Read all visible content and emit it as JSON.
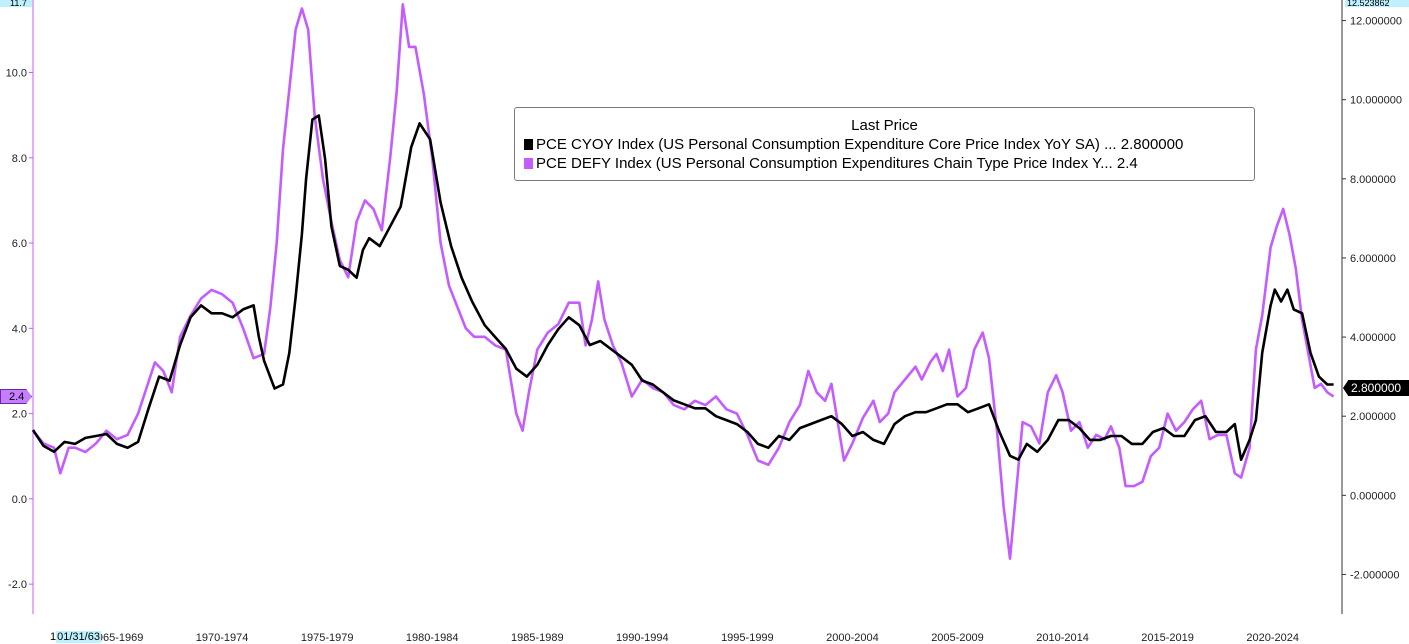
{
  "chart_data": {
    "type": "line",
    "legend_title": "Last Price",
    "legend_position": "top-center",
    "start_date_label": "01/31/63",
    "start_date_prefix": "1",
    "left_axis": {
      "ticks": [
        -2.0,
        0.0,
        2.0,
        4.0,
        6.0,
        8.0,
        10.0
      ],
      "tick_labels": [
        "-2.0",
        "0.0",
        "2.0",
        "4.0",
        "6.0",
        "8.0",
        "10.0"
      ],
      "range": [
        -2.7,
        11.7
      ],
      "top_label": "11.7"
    },
    "right_axis": {
      "ticks": [
        -2.0,
        0.0,
        2.0,
        4.0,
        6.0,
        8.0,
        10.0,
        12.0
      ],
      "tick_labels": [
        "-2.000000",
        "0.000000",
        "2.000000",
        "4.000000",
        "6.000000",
        "8.000000",
        "10.000000",
        "12.000000"
      ],
      "range": [
        -3.0,
        12.52
      ],
      "top_label": "12.523862"
    },
    "x_axis": {
      "range": [
        1963.0,
        2025.3
      ],
      "period_labels": [
        "1965-1969",
        "1970-1974",
        "1975-1979",
        "1980-1984",
        "1985-1989",
        "1990-1994",
        "1995-1999",
        "2000-2004",
        "2005-2009",
        "2010-2014",
        "2015-2019",
        "2020-2024"
      ],
      "period_centers": [
        1967,
        1972,
        1977,
        1982,
        1987,
        1992,
        1997,
        2002,
        2007,
        2012,
        2017,
        2022
      ],
      "grid": false
    },
    "series": [
      {
        "name": "PCE CYOY Index (US Personal Consumption Expenditure Core Price Index YoY SA) ... 2.800000",
        "color": "#000000",
        "axis": "right",
        "last_value_label": "2.800000",
        "points": [
          [
            1963.0,
            1.65
          ],
          [
            1963.5,
            1.25
          ],
          [
            1964.0,
            1.1
          ],
          [
            1964.5,
            1.35
          ],
          [
            1965.0,
            1.3
          ],
          [
            1965.5,
            1.45
          ],
          [
            1966.0,
            1.5
          ],
          [
            1966.5,
            1.55
          ],
          [
            1967.0,
            1.3
          ],
          [
            1967.5,
            1.2
          ],
          [
            1968.0,
            1.35
          ],
          [
            1968.5,
            2.2
          ],
          [
            1969.0,
            3.0
          ],
          [
            1969.5,
            2.9
          ],
          [
            1970.0,
            3.8
          ],
          [
            1970.5,
            4.5
          ],
          [
            1971.0,
            4.8
          ],
          [
            1971.5,
            4.6
          ],
          [
            1972.0,
            4.6
          ],
          [
            1972.5,
            4.5
          ],
          [
            1973.0,
            4.7
          ],
          [
            1973.5,
            4.8
          ],
          [
            1973.75,
            4.0
          ],
          [
            1974.0,
            3.4
          ],
          [
            1974.5,
            2.7
          ],
          [
            1974.9,
            2.8
          ],
          [
            1975.2,
            3.6
          ],
          [
            1975.5,
            5.0
          ],
          [
            1975.8,
            6.6
          ],
          [
            1976.0,
            8.0
          ],
          [
            1976.3,
            9.5
          ],
          [
            1976.6,
            9.6
          ],
          [
            1976.9,
            8.5
          ],
          [
            1977.2,
            6.8
          ],
          [
            1977.6,
            5.8
          ],
          [
            1978.0,
            5.7
          ],
          [
            1978.4,
            5.5
          ],
          [
            1978.7,
            6.2
          ],
          [
            1979.0,
            6.5
          ],
          [
            1979.5,
            6.3
          ],
          [
            1980.0,
            6.8
          ],
          [
            1980.5,
            7.3
          ],
          [
            1981.0,
            8.8
          ],
          [
            1981.4,
            9.4
          ],
          [
            1981.9,
            9.0
          ],
          [
            1982.4,
            7.4
          ],
          [
            1982.9,
            6.3
          ],
          [
            1983.4,
            5.5
          ],
          [
            1983.9,
            4.9
          ],
          [
            1984.5,
            4.3
          ],
          [
            1985.0,
            4.0
          ],
          [
            1985.5,
            3.7
          ],
          [
            1986.0,
            3.2
          ],
          [
            1986.5,
            3.0
          ],
          [
            1987.0,
            3.3
          ],
          [
            1987.5,
            3.8
          ],
          [
            1988.0,
            4.2
          ],
          [
            1988.5,
            4.5
          ],
          [
            1989.0,
            4.3
          ],
          [
            1989.5,
            3.8
          ],
          [
            1990.0,
            3.9
          ],
          [
            1990.5,
            3.7
          ],
          [
            1991.0,
            3.5
          ],
          [
            1991.5,
            3.3
          ],
          [
            1992.0,
            2.9
          ],
          [
            1992.5,
            2.8
          ],
          [
            1993.0,
            2.6
          ],
          [
            1993.5,
            2.4
          ],
          [
            1994.0,
            2.3
          ],
          [
            1994.5,
            2.2
          ],
          [
            1995.0,
            2.2
          ],
          [
            1995.5,
            2.0
          ],
          [
            1996.0,
            1.9
          ],
          [
            1996.5,
            1.8
          ],
          [
            1997.0,
            1.6
          ],
          [
            1997.5,
            1.3
          ],
          [
            1998.0,
            1.2
          ],
          [
            1998.5,
            1.5
          ],
          [
            1999.0,
            1.4
          ],
          [
            1999.5,
            1.7
          ],
          [
            2000.0,
            1.8
          ],
          [
            2000.5,
            1.9
          ],
          [
            2001.0,
            2.0
          ],
          [
            2001.5,
            1.8
          ],
          [
            2002.0,
            1.5
          ],
          [
            2002.5,
            1.6
          ],
          [
            2003.0,
            1.4
          ],
          [
            2003.5,
            1.3
          ],
          [
            2004.0,
            1.8
          ],
          [
            2004.5,
            2.0
          ],
          [
            2005.0,
            2.1
          ],
          [
            2005.5,
            2.1
          ],
          [
            2006.0,
            2.2
          ],
          [
            2006.5,
            2.3
          ],
          [
            2007.0,
            2.3
          ],
          [
            2007.5,
            2.1
          ],
          [
            2008.0,
            2.2
          ],
          [
            2008.5,
            2.3
          ],
          [
            2009.0,
            1.6
          ],
          [
            2009.5,
            1.0
          ],
          [
            2009.9,
            0.9
          ],
          [
            2010.3,
            1.3
          ],
          [
            2010.8,
            1.1
          ],
          [
            2011.3,
            1.4
          ],
          [
            2011.8,
            1.9
          ],
          [
            2012.3,
            1.9
          ],
          [
            2012.8,
            1.7
          ],
          [
            2013.3,
            1.4
          ],
          [
            2013.8,
            1.4
          ],
          [
            2014.3,
            1.5
          ],
          [
            2014.8,
            1.5
          ],
          [
            2015.3,
            1.3
          ],
          [
            2015.8,
            1.3
          ],
          [
            2016.3,
            1.6
          ],
          [
            2016.8,
            1.7
          ],
          [
            2017.3,
            1.5
          ],
          [
            2017.8,
            1.5
          ],
          [
            2018.3,
            1.9
          ],
          [
            2018.8,
            2.0
          ],
          [
            2019.3,
            1.6
          ],
          [
            2019.8,
            1.6
          ],
          [
            2020.2,
            1.8
          ],
          [
            2020.5,
            0.9
          ],
          [
            2020.9,
            1.4
          ],
          [
            2021.2,
            1.9
          ],
          [
            2021.5,
            3.6
          ],
          [
            2021.9,
            4.8
          ],
          [
            2022.1,
            5.2
          ],
          [
            2022.4,
            4.9
          ],
          [
            2022.7,
            5.2
          ],
          [
            2023.0,
            4.7
          ],
          [
            2023.4,
            4.6
          ],
          [
            2023.8,
            3.6
          ],
          [
            2024.2,
            3.0
          ],
          [
            2024.6,
            2.8
          ],
          [
            2024.9,
            2.8
          ]
        ]
      },
      {
        "name": "PCE DEFY Index (US Personal Consumption Expenditures Chain Type Price Index Y... 2.4",
        "color": "#c45cff",
        "axis": "left",
        "last_value_label": "2.4",
        "points": [
          [
            1963.0,
            1.6
          ],
          [
            1963.5,
            1.3
          ],
          [
            1964.0,
            1.2
          ],
          [
            1964.3,
            0.6
          ],
          [
            1964.7,
            1.2
          ],
          [
            1965.0,
            1.2
          ],
          [
            1965.5,
            1.1
          ],
          [
            1966.0,
            1.3
          ],
          [
            1966.5,
            1.6
          ],
          [
            1967.0,
            1.4
          ],
          [
            1967.5,
            1.5
          ],
          [
            1968.0,
            2.0
          ],
          [
            1968.4,
            2.6
          ],
          [
            1968.8,
            3.2
          ],
          [
            1969.2,
            3.0
          ],
          [
            1969.6,
            2.5
          ],
          [
            1970.0,
            3.8
          ],
          [
            1970.5,
            4.3
          ],
          [
            1971.0,
            4.7
          ],
          [
            1971.5,
            4.9
          ],
          [
            1972.0,
            4.8
          ],
          [
            1972.5,
            4.6
          ],
          [
            1973.0,
            4.0
          ],
          [
            1973.5,
            3.3
          ],
          [
            1974.0,
            3.4
          ],
          [
            1974.3,
            4.5
          ],
          [
            1974.6,
            6.0
          ],
          [
            1974.9,
            8.2
          ],
          [
            1975.2,
            9.6
          ],
          [
            1975.5,
            11.0
          ],
          [
            1975.8,
            11.5
          ],
          [
            1976.1,
            11.0
          ],
          [
            1976.4,
            9.0
          ],
          [
            1976.8,
            7.5
          ],
          [
            1977.2,
            6.5
          ],
          [
            1977.6,
            5.6
          ],
          [
            1978.0,
            5.2
          ],
          [
            1978.4,
            6.5
          ],
          [
            1978.8,
            7.0
          ],
          [
            1979.2,
            6.8
          ],
          [
            1979.6,
            6.3
          ],
          [
            1980.0,
            8.0
          ],
          [
            1980.3,
            9.5
          ],
          [
            1980.6,
            11.6
          ],
          [
            1980.9,
            10.6
          ],
          [
            1981.2,
            10.6
          ],
          [
            1981.6,
            9.5
          ],
          [
            1982.0,
            8.0
          ],
          [
            1982.4,
            6.0
          ],
          [
            1982.8,
            5.0
          ],
          [
            1983.2,
            4.5
          ],
          [
            1983.6,
            4.0
          ],
          [
            1984.0,
            3.8
          ],
          [
            1984.5,
            3.8
          ],
          [
            1985.0,
            3.6
          ],
          [
            1985.5,
            3.5
          ],
          [
            1986.0,
            2.0
          ],
          [
            1986.3,
            1.6
          ],
          [
            1986.6,
            2.5
          ],
          [
            1987.0,
            3.5
          ],
          [
            1987.5,
            3.9
          ],
          [
            1988.0,
            4.1
          ],
          [
            1988.5,
            4.6
          ],
          [
            1989.0,
            4.6
          ],
          [
            1989.3,
            3.6
          ],
          [
            1989.6,
            4.2
          ],
          [
            1989.9,
            5.1
          ],
          [
            1990.2,
            4.2
          ],
          [
            1990.6,
            3.6
          ],
          [
            1991.0,
            3.2
          ],
          [
            1991.5,
            2.4
          ],
          [
            1992.0,
            2.8
          ],
          [
            1992.5,
            2.6
          ],
          [
            1993.0,
            2.5
          ],
          [
            1993.5,
            2.2
          ],
          [
            1994.0,
            2.1
          ],
          [
            1994.5,
            2.3
          ],
          [
            1995.0,
            2.2
          ],
          [
            1995.5,
            2.4
          ],
          [
            1996.0,
            2.1
          ],
          [
            1996.5,
            2.0
          ],
          [
            1997.0,
            1.5
          ],
          [
            1997.5,
            0.9
          ],
          [
            1998.0,
            0.8
          ],
          [
            1998.5,
            1.2
          ],
          [
            1999.0,
            1.8
          ],
          [
            1999.5,
            2.2
          ],
          [
            1999.9,
            3.0
          ],
          [
            2000.3,
            2.5
          ],
          [
            2000.7,
            2.3
          ],
          [
            2001.0,
            2.7
          ],
          [
            2001.3,
            1.8
          ],
          [
            2001.6,
            0.9
          ],
          [
            2002.0,
            1.3
          ],
          [
            2002.5,
            1.9
          ],
          [
            2003.0,
            2.3
          ],
          [
            2003.3,
            1.8
          ],
          [
            2003.7,
            2.0
          ],
          [
            2004.0,
            2.5
          ],
          [
            2004.5,
            2.8
          ],
          [
            2005.0,
            3.1
          ],
          [
            2005.3,
            2.8
          ],
          [
            2005.7,
            3.2
          ],
          [
            2006.0,
            3.4
          ],
          [
            2006.3,
            3.0
          ],
          [
            2006.6,
            3.5
          ],
          [
            2007.0,
            2.4
          ],
          [
            2007.4,
            2.6
          ],
          [
            2007.8,
            3.5
          ],
          [
            2008.2,
            3.9
          ],
          [
            2008.5,
            3.3
          ],
          [
            2008.9,
            1.5
          ],
          [
            2009.2,
            -0.2
          ],
          [
            2009.5,
            -1.4
          ],
          [
            2009.8,
            0.2
          ],
          [
            2010.1,
            1.8
          ],
          [
            2010.5,
            1.7
          ],
          [
            2010.9,
            1.3
          ],
          [
            2011.3,
            2.5
          ],
          [
            2011.7,
            2.9
          ],
          [
            2012.0,
            2.5
          ],
          [
            2012.4,
            1.6
          ],
          [
            2012.8,
            1.8
          ],
          [
            2013.2,
            1.2
          ],
          [
            2013.6,
            1.5
          ],
          [
            2014.0,
            1.4
          ],
          [
            2014.3,
            1.7
          ],
          [
            2014.7,
            1.2
          ],
          [
            2015.0,
            0.3
          ],
          [
            2015.4,
            0.3
          ],
          [
            2015.8,
            0.4
          ],
          [
            2016.2,
            1.0
          ],
          [
            2016.6,
            1.2
          ],
          [
            2017.0,
            2.0
          ],
          [
            2017.4,
            1.6
          ],
          [
            2017.8,
            1.8
          ],
          [
            2018.2,
            2.1
          ],
          [
            2018.6,
            2.3
          ],
          [
            2019.0,
            1.4
          ],
          [
            2019.4,
            1.5
          ],
          [
            2019.8,
            1.5
          ],
          [
            2020.2,
            0.6
          ],
          [
            2020.5,
            0.5
          ],
          [
            2020.9,
            1.2
          ],
          [
            2021.2,
            3.5
          ],
          [
            2021.5,
            4.3
          ],
          [
            2021.9,
            5.9
          ],
          [
            2022.2,
            6.4
          ],
          [
            2022.5,
            6.8
          ],
          [
            2022.8,
            6.2
          ],
          [
            2023.1,
            5.4
          ],
          [
            2023.4,
            4.2
          ],
          [
            2023.7,
            3.4
          ],
          [
            2024.0,
            2.6
          ],
          [
            2024.3,
            2.7
          ],
          [
            2024.6,
            2.5
          ],
          [
            2024.9,
            2.4
          ]
        ]
      }
    ]
  }
}
